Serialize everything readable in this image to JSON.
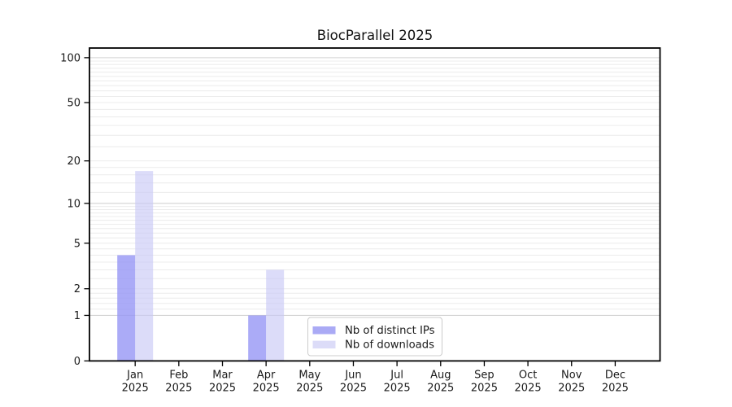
{
  "page": {
    "background": "#ffffff"
  },
  "chart_data": {
    "type": "bar",
    "title": "BiocParallel 2025",
    "year_label": "2025",
    "categories": [
      "Jan",
      "Feb",
      "Mar",
      "Apr",
      "May",
      "Jun",
      "Jul",
      "Aug",
      "Sep",
      "Oct",
      "Nov",
      "Dec"
    ],
    "series": [
      {
        "name": "Nb of distinct IPs",
        "fill": "rgba(150,150,245,0.8)",
        "swatch": "#aaaaf5",
        "values": [
          4,
          0,
          0,
          1,
          0,
          0,
          0,
          0,
          0,
          0,
          0,
          0
        ]
      },
      {
        "name": "Nb of downloads",
        "fill": "rgba(200,200,246,0.64)",
        "swatch": "#dcdcf8",
        "values": [
          17,
          0,
          0,
          3,
          0,
          0,
          0,
          0,
          0,
          0,
          0,
          0
        ]
      }
    ],
    "xlabel": "",
    "ylabel": "",
    "yscale": "log1p",
    "ylim": [
      0,
      116
    ],
    "y_ticks": [
      0,
      1,
      2,
      5,
      10,
      20,
      50,
      100
    ],
    "grid": {
      "on": true,
      "major_values": [
        1,
        10,
        100
      ],
      "minor_values": [
        1.2,
        1.4,
        1.6,
        1.8,
        2,
        2.5,
        3,
        3.5,
        4,
        4.5,
        5,
        5.5,
        6,
        6.5,
        7,
        7.5,
        8,
        8.5,
        9,
        9.5,
        12,
        14,
        16,
        18,
        20,
        25,
        30,
        35,
        40,
        45,
        50,
        55,
        60,
        65,
        70,
        75,
        80,
        85,
        90,
        95
      ],
      "major_color": "#d2d2d2",
      "minor_color": "#ececec"
    },
    "legend": {
      "position": "bottom-center",
      "border_color": "#cccccc",
      "background": "#ffffff"
    },
    "axis_color": "#000000",
    "text_color": "#1a1a1a"
  }
}
